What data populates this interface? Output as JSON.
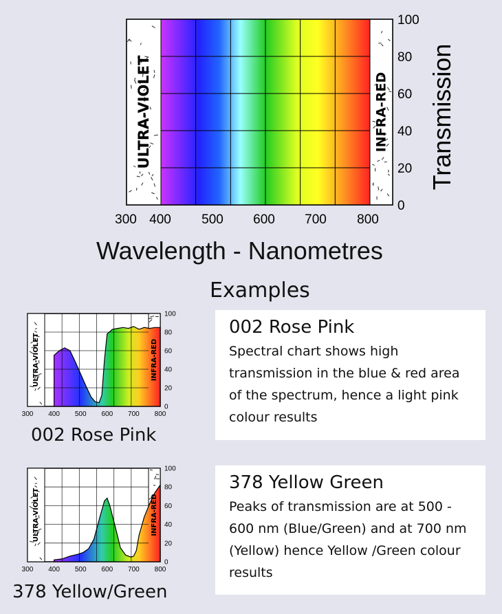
{
  "main": {
    "ylabel": "Transmission",
    "xlabel": "Wavelength - Nanometres",
    "uv_label": "ULTRA-VIOLET",
    "ir_label": "INFRA-RED",
    "x_ticks": [
      "300",
      "400",
      "500",
      "600",
      "700",
      "800"
    ],
    "y_ticks": [
      "100",
      "80",
      "60",
      "40",
      "20",
      "0"
    ]
  },
  "examples_heading": "Examples",
  "examples": [
    {
      "caption": "002 Rose Pink",
      "title": "002 Rose Pink",
      "description": "Spectral chart shows high transmission in the blue & red area of the spectrum, hence a light pink colour results"
    },
    {
      "caption": "378 Yellow/Green",
      "title": "378 Yellow Green",
      "description": "Peaks of transmission are at 500 - 600 nm (Blue/Green) and at 700 nm (Yellow) hence Yellow /Green colour results"
    }
  ],
  "chart_data": [
    {
      "type": "area",
      "title": "",
      "xlabel": "Wavelength - Nanometres",
      "ylabel": "Transmission",
      "xlim": [
        300,
        800
      ],
      "ylim": [
        0,
        100
      ],
      "grid": true,
      "series": [
        {
          "x": [
            400,
            800
          ],
          "y": [
            100,
            100
          ]
        }
      ]
    },
    {
      "type": "area",
      "title": "002 Rose Pink",
      "xlim": [
        300,
        800
      ],
      "ylim": [
        0,
        100
      ],
      "grid": true,
      "series": [
        {
          "x": [
            400,
            420,
            440,
            460,
            480,
            500,
            520,
            540,
            555,
            570,
            580,
            590,
            600,
            620,
            640,
            660,
            680,
            700,
            720,
            740,
            760,
            780,
            800
          ],
          "y": [
            55,
            60,
            63,
            60,
            48,
            35,
            22,
            10,
            5,
            4,
            12,
            50,
            78,
            83,
            84,
            85,
            84,
            86,
            83,
            85,
            84,
            85,
            85
          ]
        }
      ]
    },
    {
      "type": "area",
      "title": "378 Yellow Green",
      "xlim": [
        300,
        800
      ],
      "ylim": [
        0,
        100
      ],
      "grid": true,
      "series": [
        {
          "x": [
            400,
            430,
            460,
            490,
            510,
            530,
            550,
            570,
            590,
            600,
            610,
            630,
            650,
            670,
            690,
            700,
            710,
            720,
            740,
            760,
            780,
            800
          ],
          "y": [
            2,
            3,
            6,
            8,
            10,
            14,
            24,
            45,
            65,
            68,
            60,
            38,
            15,
            7,
            5,
            6,
            12,
            28,
            48,
            62,
            74,
            82
          ]
        }
      ]
    }
  ]
}
